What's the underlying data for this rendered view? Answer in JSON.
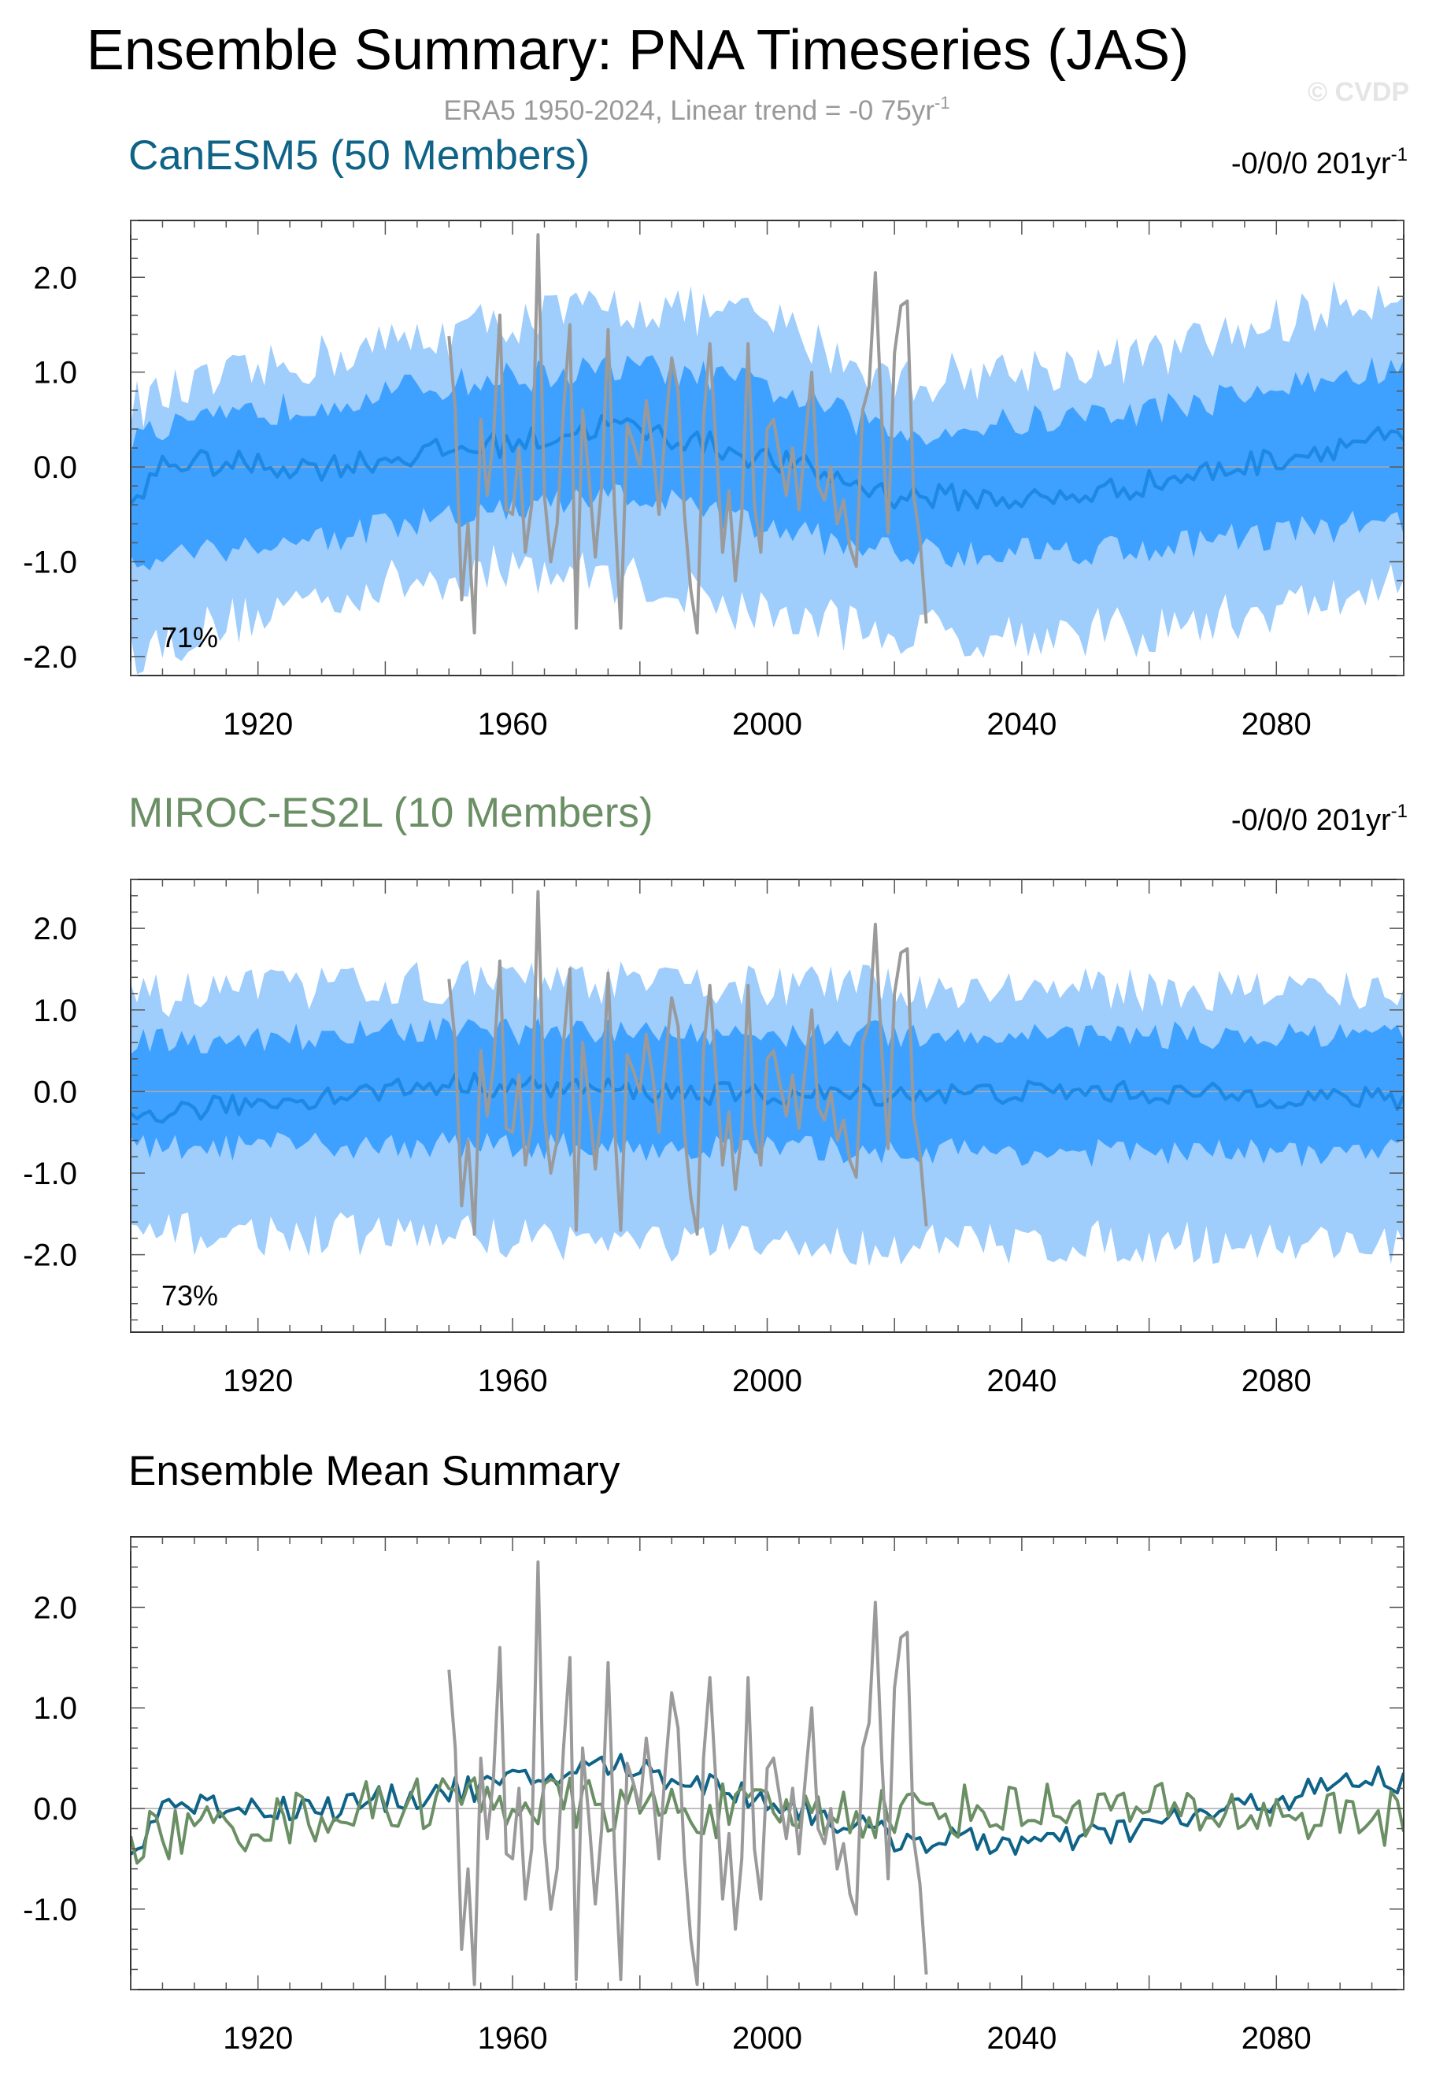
{
  "figure": {
    "title": "Ensemble Summary: PNA Timeseries (JAS)",
    "subtitle": "ERA5 1950-2024, Linear trend = -0 75yr",
    "subtitle_sup": "-1",
    "watermark": "© CVDP",
    "colors": {
      "dark_band": "#3ea1ff",
      "light_band": "#9fcdfc",
      "mean_line": "#1e88e5",
      "obs": "#9a9a9a",
      "canesm5": "#0e6387",
      "miroc": "#6b8f65",
      "zero_line": "#aaaaaa"
    }
  },
  "chart_data": [
    {
      "id": "canesm5",
      "type": "area",
      "title": "CanESM5 (50 Members)",
      "title_color": "#0e6387",
      "trend_label": "-0/0/0 201yr",
      "trend_sup": "-1",
      "pct_label": "71%",
      "xlabel": "",
      "ylabel": "",
      "xlim": [
        1900,
        2100
      ],
      "ylim": [
        -2.2,
        2.6
      ],
      "xticks": [
        1920,
        1960,
        2000,
        2040,
        2080
      ],
      "xtick_labels": [
        "1920",
        "1960",
        "2000",
        "2040",
        "2080"
      ],
      "yticks": [
        -2.0,
        -1.0,
        0.0,
        1.0,
        2.0
      ],
      "ytick_labels": [
        "-2.0",
        "-1.0",
        "0.0",
        "1.0",
        "2.0"
      ],
      "series": [
        {
          "name": "ensemble 10-90% range",
          "style": "band-light",
          "keyframes": [
            [
              1900,
              -1.95,
              0.65
            ],
            [
              1930,
              -1.35,
              1.15
            ],
            [
              1960,
              -1.05,
              1.55
            ],
            [
              1980,
              -1.2,
              1.7
            ],
            [
              2000,
              -1.55,
              1.55
            ],
            [
              2020,
              -1.75,
              0.9
            ],
            [
              2060,
              -1.75,
              1.15
            ],
            [
              2100,
              -1.25,
              1.9
            ]
          ]
        },
        {
          "name": "ensemble 25-75% range",
          "style": "band-dark",
          "keyframes": [
            [
              1900,
              -0.95,
              0.3
            ],
            [
              1930,
              -0.75,
              0.7
            ],
            [
              1960,
              -0.45,
              0.95
            ],
            [
              1980,
              -0.3,
              1.05
            ],
            [
              2000,
              -0.65,
              0.85
            ],
            [
              2020,
              -0.9,
              0.35
            ],
            [
              2060,
              -0.85,
              0.6
            ],
            [
              2100,
              -0.55,
              1.05
            ]
          ]
        },
        {
          "name": "ensemble mean",
          "style": "mean",
          "keyframes": [
            [
              1900,
              -0.5
            ],
            [
              1905,
              0.05
            ],
            [
              1930,
              0.0
            ],
            [
              1965,
              0.3
            ],
            [
              1975,
              0.45
            ],
            [
              1990,
              0.25
            ],
            [
              2005,
              0.0
            ],
            [
              2020,
              -0.3
            ],
            [
              2045,
              -0.35
            ],
            [
              2070,
              -0.05
            ],
            [
              2095,
              0.3
            ],
            [
              2100,
              0.25
            ]
          ]
        },
        {
          "name": "ERA5",
          "style": "obs",
          "x_start": 1950,
          "values": [
            1.38,
            0.6,
            -1.4,
            -0.6,
            -1.75,
            0.5,
            -0.3,
            0.3,
            1.6,
            -0.45,
            -0.5,
            0.2,
            -0.9,
            -0.4,
            2.45,
            -0.3,
            -1.0,
            -0.6,
            0.6,
            1.5,
            -1.7,
            0.6,
            -0.1,
            -0.95,
            -0.2,
            1.45,
            -0.4,
            -1.7,
            0.45,
            0.25,
            0.0,
            0.7,
            0.2,
            -0.5,
            0.4,
            1.15,
            0.8,
            -0.5,
            -1.3,
            -1.75,
            0.5,
            1.3,
            0.2,
            -0.9,
            -0.25,
            -1.2,
            -0.5,
            1.3,
            -0.4,
            -0.9,
            0.4,
            0.5,
            0.1,
            -0.3,
            0.2,
            -0.45,
            0.3,
            1.0,
            -0.2,
            -0.35,
            0.0,
            -0.6,
            -0.35,
            -0.85,
            -1.05,
            0.6,
            0.85,
            2.05,
            0.5,
            -0.7,
            1.2,
            1.7,
            1.75,
            -0.3,
            -0.75,
            -1.65
          ]
        }
      ]
    },
    {
      "id": "miroc",
      "type": "area",
      "title": "MIROC-ES2L (10 Members)",
      "title_color": "#6b8f65",
      "trend_label": "-0/0/0 201yr",
      "trend_sup": "-1",
      "pct_label": "73%",
      "xlabel": "",
      "ylabel": "",
      "xlim": [
        1900,
        2100
      ],
      "ylim": [
        -2.95,
        2.6
      ],
      "xticks": [
        1920,
        1960,
        2000,
        2040,
        2080
      ],
      "xtick_labels": [
        "1920",
        "1960",
        "2000",
        "2040",
        "2080"
      ],
      "yticks": [
        -2.0,
        -1.0,
        0.0,
        1.0,
        2.0
      ],
      "ytick_labels": [
        "-2.0",
        "-1.0",
        "0.0",
        "1.0",
        "2.0"
      ],
      "series": [
        {
          "name": "ensemble 10-90% range",
          "style": "band-light",
          "keyframes": [
            [
              1900,
              -1.75,
              1.15
            ],
            [
              1950,
              -1.75,
              1.35
            ],
            [
              2000,
              -1.9,
              1.3
            ],
            [
              2050,
              -1.85,
              1.25
            ],
            [
              2100,
              -1.85,
              1.25
            ]
          ]
        },
        {
          "name": "ensemble 25-75% range",
          "style": "band-dark",
          "keyframes": [
            [
              1900,
              -0.7,
              0.6
            ],
            [
              1950,
              -0.65,
              0.75
            ],
            [
              2000,
              -0.7,
              0.7
            ],
            [
              2050,
              -0.75,
              0.7
            ],
            [
              2100,
              -0.75,
              0.65
            ]
          ]
        },
        {
          "name": "ensemble mean",
          "style": "mean",
          "keyframes": [
            [
              1900,
              -0.3
            ],
            [
              1950,
              0.1
            ],
            [
              2000,
              -0.05
            ],
            [
              2050,
              0.0
            ],
            [
              2100,
              -0.1
            ]
          ]
        },
        {
          "name": "ERA5",
          "style": "obs",
          "x_start": 1950,
          "values": [
            1.38,
            0.6,
            -1.4,
            -0.6,
            -1.75,
            0.5,
            -0.3,
            0.3,
            1.6,
            -0.45,
            -0.5,
            0.2,
            -0.9,
            -0.4,
            2.45,
            -0.3,
            -1.0,
            -0.6,
            0.6,
            1.5,
            -1.7,
            0.6,
            -0.1,
            -0.95,
            -0.2,
            1.45,
            -0.4,
            -1.7,
            0.45,
            0.25,
            0.0,
            0.7,
            0.2,
            -0.5,
            0.4,
            1.15,
            0.8,
            -0.5,
            -1.3,
            -1.75,
            0.5,
            1.3,
            0.2,
            -0.9,
            -0.25,
            -1.2,
            -0.5,
            1.3,
            -0.4,
            -0.9,
            0.4,
            0.5,
            0.1,
            -0.3,
            0.2,
            -0.45,
            0.3,
            1.0,
            -0.2,
            -0.35,
            0.0,
            -0.6,
            -0.35,
            -0.85,
            -1.05,
            0.6,
            0.85,
            2.05,
            0.5,
            -0.7,
            1.2,
            1.7,
            1.75,
            -0.3,
            -0.75,
            -1.65
          ]
        }
      ]
    },
    {
      "id": "summary",
      "type": "line",
      "title": "Ensemble Mean Summary",
      "title_color": "#000000",
      "xlabel": "",
      "ylabel": "",
      "xlim": [
        1900,
        2100
      ],
      "ylim": [
        -1.8,
        2.7
      ],
      "xticks": [
        1920,
        1960,
        2000,
        2040,
        2080
      ],
      "xtick_labels": [
        "1920",
        "1960",
        "2000",
        "2040",
        "2080"
      ],
      "yticks": [
        -1.0,
        0.0,
        1.0,
        2.0
      ],
      "ytick_labels": [
        "-1.0",
        "0.0",
        "1.0",
        "2.0"
      ],
      "series": [
        {
          "name": "CanESM5 mean",
          "style": "canesm5",
          "keyframes": [
            [
              1900,
              -0.5
            ],
            [
              1905,
              0.05
            ],
            [
              1930,
              0.0
            ],
            [
              1965,
              0.3
            ],
            [
              1975,
              0.45
            ],
            [
              1990,
              0.25
            ],
            [
              2005,
              0.0
            ],
            [
              2020,
              -0.3
            ],
            [
              2045,
              -0.35
            ],
            [
              2070,
              -0.05
            ],
            [
              2095,
              0.3
            ],
            [
              2100,
              0.25
            ]
          ]
        },
        {
          "name": "MIROC-ES2L mean",
          "style": "miroc",
          "keyframes": [
            [
              1900,
              -0.3
            ],
            [
              1950,
              0.1
            ],
            [
              2000,
              -0.05
            ],
            [
              2050,
              0.0
            ],
            [
              2100,
              -0.1
            ]
          ]
        },
        {
          "name": "ERA5",
          "style": "obs",
          "x_start": 1950,
          "values": [
            1.38,
            0.6,
            -1.4,
            -0.6,
            -1.75,
            0.5,
            -0.3,
            0.3,
            1.6,
            -0.45,
            -0.5,
            0.2,
            -0.9,
            -0.4,
            2.45,
            -0.3,
            -1.0,
            -0.6,
            0.6,
            1.5,
            -1.7,
            0.6,
            -0.1,
            -0.95,
            -0.2,
            1.45,
            -0.4,
            -1.7,
            0.45,
            0.25,
            0.0,
            0.7,
            0.2,
            -0.5,
            0.4,
            1.15,
            0.8,
            -0.5,
            -1.3,
            -1.75,
            0.5,
            1.3,
            0.2,
            -0.9,
            -0.25,
            -1.2,
            -0.5,
            1.3,
            -0.4,
            -0.9,
            0.4,
            0.5,
            0.1,
            -0.3,
            0.2,
            -0.45,
            0.3,
            1.0,
            -0.2,
            -0.35,
            0.0,
            -0.6,
            -0.35,
            -0.85,
            -1.05,
            0.6,
            0.85,
            2.05,
            0.5,
            -0.7,
            1.2,
            1.7,
            1.75,
            -0.3,
            -0.75,
            -1.65
          ]
        }
      ]
    }
  ]
}
